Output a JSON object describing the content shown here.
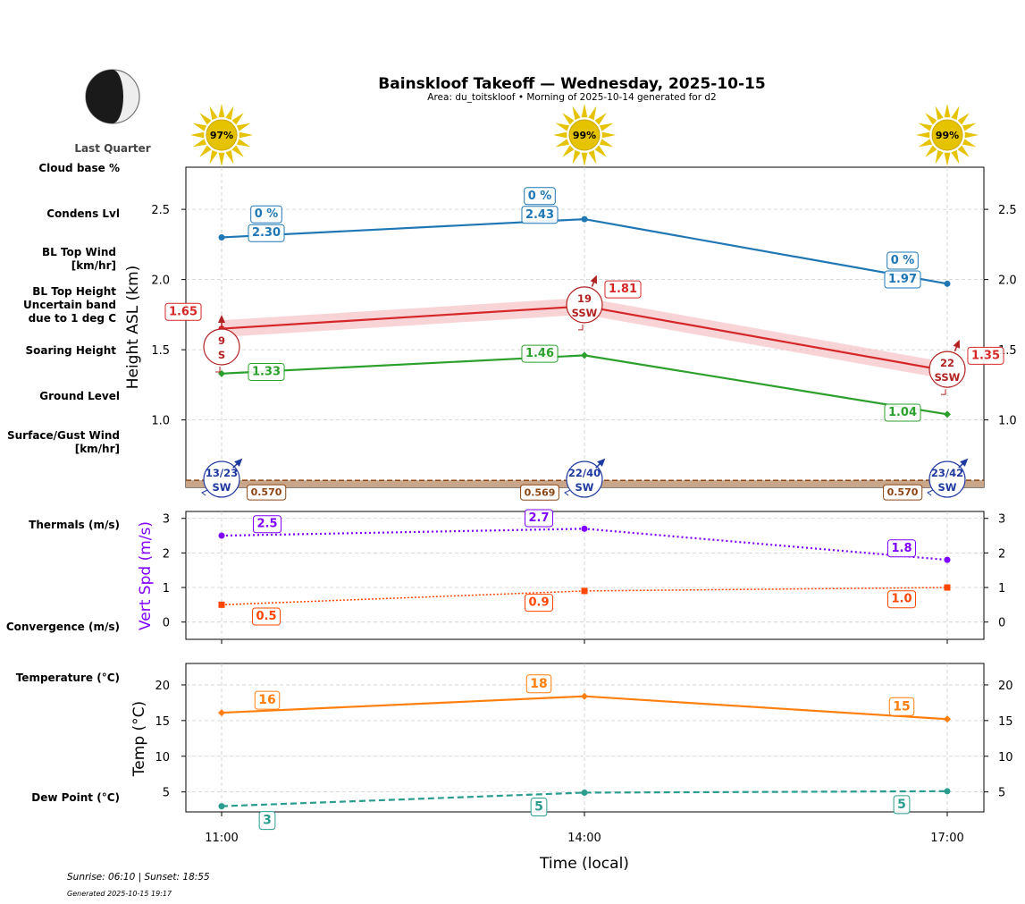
{
  "title": "Bainskloof Takeoff — Wednesday, 2025-10-15",
  "subtitle": "Area: du_toitskloof • Morning of 2025-10-14 generated for d2",
  "moon": {
    "phase": "Last Quarter"
  },
  "times": [
    "11:00",
    "14:00",
    "17:00"
  ],
  "sun_icons": [
    {
      "time": "11:00",
      "label": "97%"
    },
    {
      "time": "14:00",
      "label": "99%"
    },
    {
      "time": "17:00",
      "label": "99%"
    }
  ],
  "side_labels": {
    "cloud_base": "Cloud base %",
    "condens": "Condens Lvl",
    "bl_top_wind_1": "BL Top Wind",
    "bl_top_wind_2": "[km/hr]",
    "bl_top_height_1": "BL Top Height",
    "bl_top_height_2": "Uncertain band",
    "bl_top_height_3": "due to 1 deg C",
    "soaring": "Soaring Height",
    "ground": "Ground Level",
    "surface_wind_1": "Surface/Gust Wind",
    "surface_wind_2": "[km/hr]",
    "thermals": "Thermals (m/s)",
    "convergence": "Convergence (m/s)",
    "temperature": "Temperature (°C)",
    "dew_point": "Dew Point (°C)"
  },
  "colors": {
    "condens": "#1f77b4",
    "bl_top": "#d62728",
    "bl_band": "#f4b8bd",
    "soaring": "#2ca02c",
    "ground": "#8b4513",
    "ground_fill": "#c9a68a",
    "surface_wind": "#1f3a9e",
    "bl_wind": "#b22222",
    "thermals": "#7f00ff",
    "convergence": "#ff4500",
    "temperature": "#ff7f0e",
    "dew_point": "#2a9d8f",
    "sun": "#e6c300"
  },
  "chart_data": [
    {
      "id": "heights",
      "type": "line",
      "ylabel": "Height ASL (km)",
      "ylim": [
        0.52,
        2.8
      ],
      "yticks": [
        "1.0",
        "1.5",
        "2.0",
        "2.5"
      ],
      "ytick_values": [
        1.0,
        1.5,
        2.0,
        2.5
      ],
      "x": [
        "11:00",
        "14:00",
        "17:00"
      ],
      "series": [
        {
          "name": "Condens Lvl",
          "values": [
            2.3,
            2.43,
            1.97
          ],
          "labels": [
            "2.30",
            "2.43",
            "1.97"
          ]
        },
        {
          "name": "Cloud base %",
          "values": [
            0,
            0,
            0
          ],
          "labels": [
            "0 %",
            "0 %",
            "0 %"
          ]
        },
        {
          "name": "BL Top Height",
          "values": [
            1.65,
            1.81,
            1.35
          ],
          "labels": [
            "1.65",
            "1.81",
            "1.35"
          ],
          "band": 0.06
        },
        {
          "name": "Soaring Height",
          "values": [
            1.33,
            1.46,
            1.04
          ],
          "labels": [
            "1.33",
            "1.46",
            "1.04"
          ]
        },
        {
          "name": "Ground Level",
          "values": [
            0.57,
            0.569,
            0.57
          ],
          "labels": [
            "0.570",
            "0.569",
            "0.570"
          ]
        }
      ],
      "bl_top_wind": [
        {
          "speed": "9",
          "dir": "S"
        },
        {
          "speed": "19",
          "dir": "SSW"
        },
        {
          "speed": "22",
          "dir": "SSW"
        }
      ],
      "surface_wind": [
        {
          "speed": "13/23",
          "dir": "SW"
        },
        {
          "speed": "22/40",
          "dir": "SW"
        },
        {
          "speed": "23/42",
          "dir": "SW"
        }
      ]
    },
    {
      "id": "vertical",
      "type": "line",
      "ylabel": "Vert Spd (m/s)",
      "ylim": [
        -0.5,
        3.2
      ],
      "yticks": [
        "0",
        "1",
        "2",
        "3"
      ],
      "ytick_values": [
        0,
        1,
        2,
        3
      ],
      "x": [
        "11:00",
        "14:00",
        "17:00"
      ],
      "series": [
        {
          "name": "Thermals (m/s)",
          "values": [
            2.5,
            2.7,
            1.8
          ],
          "labels": [
            "2.5",
            "2.7",
            "1.8"
          ]
        },
        {
          "name": "Convergence (m/s)",
          "values": [
            0.5,
            0.9,
            1.0
          ],
          "labels": [
            "0.5",
            "0.9",
            "1.0"
          ]
        }
      ]
    },
    {
      "id": "temperature",
      "type": "line",
      "ylabel": "Temp (°C)",
      "ylim": [
        2.2,
        23
      ],
      "yticks": [
        "5",
        "10",
        "15",
        "20"
      ],
      "ytick_values": [
        5,
        10,
        15,
        20
      ],
      "xlabel": "Time (local)",
      "x": [
        "11:00",
        "14:00",
        "17:00"
      ],
      "series": [
        {
          "name": "Temperature (°C)",
          "values": [
            16.1,
            18.4,
            15.2
          ],
          "labels": [
            "16",
            "18",
            "15"
          ]
        },
        {
          "name": "Dew Point (°C)",
          "values": [
            3.0,
            4.9,
            5.1
          ],
          "labels": [
            "3",
            "5",
            "5"
          ]
        }
      ]
    }
  ],
  "footer": {
    "sun_times": "Sunrise: 06:10 | Sunset: 18:55",
    "generated": "Generated 2025-10-15 19:17"
  }
}
